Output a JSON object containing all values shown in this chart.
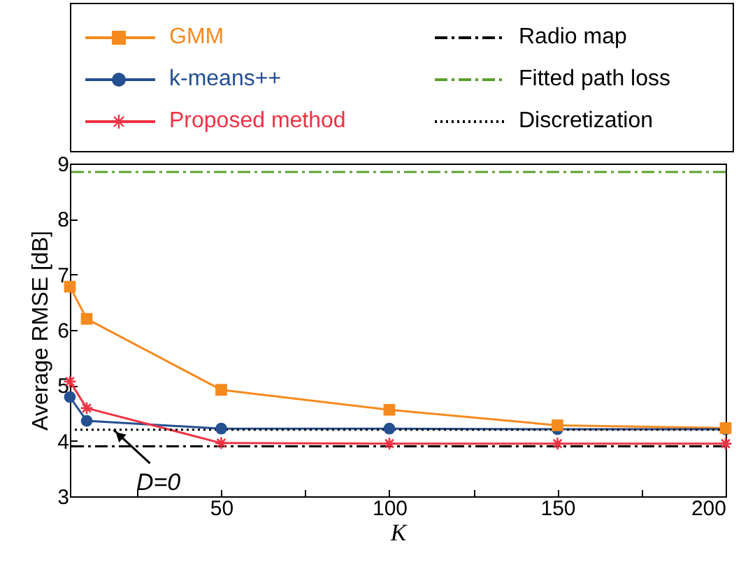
{
  "chart_data": {
    "type": "line",
    "xlabel": "K",
    "ylabel": "Average RMSE [dB]",
    "x": [
      5,
      10,
      50,
      100,
      150,
      200
    ],
    "series": [
      {
        "name": "GMM",
        "color": "#f58a1f",
        "marker": "square",
        "values": [
          6.78,
          6.2,
          4.92,
          4.56,
          4.28,
          4.23
        ]
      },
      {
        "name": "k-means++",
        "color": "#244f91",
        "marker": "circle",
        "values": [
          4.79,
          4.36,
          4.22,
          4.22,
          4.21,
          4.21
        ]
      },
      {
        "name": "Proposed method",
        "color": "#ee3344",
        "marker": "cross",
        "values": [
          5.07,
          4.59,
          3.96,
          3.95,
          3.95,
          3.95
        ]
      }
    ],
    "ref_lines": [
      {
        "axis": "y",
        "value": 3.9,
        "label": "Radio map",
        "color": "#000000",
        "line_style": "dashdot"
      },
      {
        "axis": "y",
        "value": 8.85,
        "label": "Fitted path loss",
        "color": "#5aa02c",
        "line_style": "dashdot"
      },
      {
        "axis": "y",
        "value": 4.2,
        "label": "Discretization",
        "color": "#000000",
        "line_style": "dotted"
      }
    ],
    "annotations": [
      {
        "text": "D=0",
        "x": 18,
        "y": 4.2
      }
    ],
    "xlim": [
      5,
      200
    ],
    "xticks": [
      {
        "value": 25,
        "label": null
      },
      50,
      {
        "value": 75,
        "label": null
      },
      100,
      {
        "value": 125,
        "label": null
      },
      150,
      {
        "value": 175,
        "label": null
      },
      200
    ],
    "ylim": [
      3,
      9
    ],
    "yticks": [
      3,
      4,
      5,
      6,
      7,
      8,
      9
    ],
    "grid": false,
    "legend": "top",
    "line_style": "solid"
  }
}
